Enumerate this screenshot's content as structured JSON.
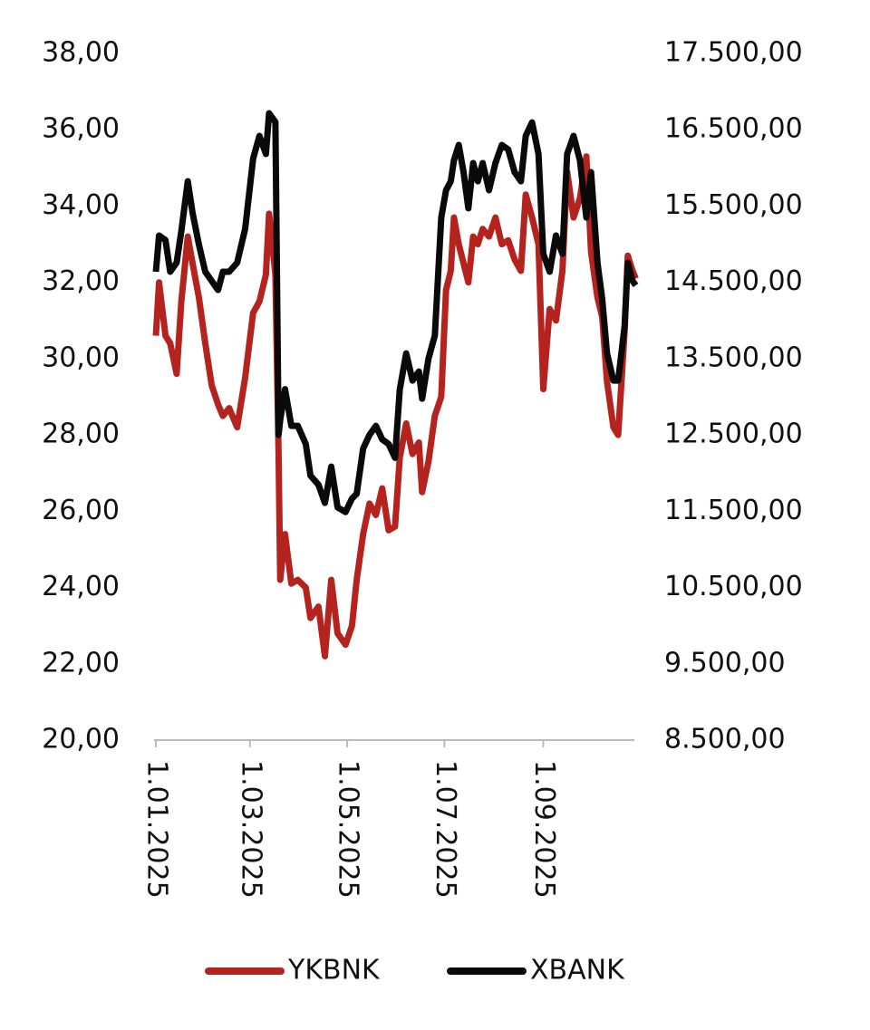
{
  "chart_data": {
    "type": "line",
    "x": [
      "2025-01-01",
      "2025-01-03",
      "2025-01-07",
      "2025-01-10",
      "2025-01-14",
      "2025-01-17",
      "2025-01-21",
      "2025-01-24",
      "2025-01-28",
      "2025-02-01",
      "2025-02-05",
      "2025-02-09",
      "2025-02-12",
      "2025-02-16",
      "2025-02-21",
      "2025-02-26",
      "2025-03-03",
      "2025-03-07",
      "2025-03-11",
      "2025-03-13",
      "2025-03-17",
      "2025-03-19",
      "2025-03-20",
      "2025-03-23",
      "2025-03-27",
      "2025-03-31",
      "2025-04-05",
      "2025-04-08",
      "2025-04-13",
      "2025-04-17",
      "2025-04-21",
      "2025-04-25",
      "2025-04-30",
      "2025-05-04",
      "2025-05-07",
      "2025-05-11",
      "2025-05-15",
      "2025-05-19",
      "2025-05-23",
      "2025-05-27",
      "2025-05-31",
      "2025-06-03",
      "2025-06-07",
      "2025-06-11",
      "2025-06-15",
      "2025-06-17",
      "2025-06-21",
      "2025-06-25",
      "2025-06-29",
      "2025-07-02",
      "2025-07-05",
      "2025-07-07",
      "2025-07-10",
      "2025-07-13",
      "2025-07-16",
      "2025-07-19",
      "2025-07-22",
      "2025-07-25",
      "2025-07-29",
      "2025-08-02",
      "2025-08-06",
      "2025-08-10",
      "2025-08-14",
      "2025-08-18",
      "2025-08-21",
      "2025-08-25",
      "2025-08-29",
      "2025-09-01",
      "2025-09-05",
      "2025-09-09",
      "2025-09-13",
      "2025-09-16",
      "2025-09-20",
      "2025-09-24",
      "2025-09-28",
      "2025-10-01",
      "2025-10-05",
      "2025-10-08",
      "2025-10-11",
      "2025-10-15",
      "2025-10-18",
      "2025-10-22",
      "2025-10-24",
      "2025-10-27",
      "2025-10-29"
    ],
    "series": [
      {
        "name": "YKBNK",
        "color": "#b5231f",
        "axis": "y",
        "values": [
          30.6,
          32.0,
          30.6,
          30.4,
          29.6,
          31.5,
          33.2,
          32.5,
          31.6,
          30.4,
          29.3,
          28.8,
          28.5,
          28.7,
          28.2,
          29.5,
          31.2,
          31.5,
          32.2,
          33.8,
          32.2,
          27.5,
          24.2,
          25.4,
          24.1,
          24.2,
          24.0,
          23.2,
          23.5,
          22.2,
          24.2,
          22.8,
          22.5,
          23.0,
          24.2,
          25.4,
          26.2,
          25.9,
          26.6,
          25.5,
          25.6,
          27.4,
          28.3,
          27.5,
          27.8,
          26.5,
          27.3,
          28.5,
          29.0,
          31.8,
          32.3,
          33.7,
          33.0,
          32.5,
          32.0,
          33.2,
          33.0,
          33.4,
          33.2,
          33.7,
          33.0,
          33.1,
          32.6,
          32.3,
          34.3,
          33.7,
          33.0,
          29.2,
          31.3,
          31.0,
          32.3,
          34.9,
          33.7,
          34.2,
          35.3,
          32.8,
          31.6,
          31.1,
          29.4,
          28.2,
          28.0,
          30.7,
          32.7,
          32.3,
          32.1
        ]
      },
      {
        "name": "XBANK",
        "color": "#0a0a0a",
        "axis": "y2",
        "values": [
          14638,
          15113,
          15054,
          14638,
          14757,
          15172,
          15825,
          15410,
          14994,
          14638,
          14519,
          14400,
          14638,
          14638,
          14757,
          15200,
          16122,
          16419,
          16182,
          16716,
          16600,
          12500,
          12700,
          13100,
          12619,
          12619,
          12381,
          11966,
          11847,
          11609,
          12084,
          11550,
          11490,
          11668,
          11728,
          12322,
          12500,
          12619,
          12441,
          12381,
          12200,
          13094,
          13569,
          13213,
          13331,
          12975,
          13500,
          13800,
          15350,
          15707,
          15825,
          16100,
          16301,
          15944,
          15470,
          16063,
          15825,
          16063,
          15707,
          16063,
          16301,
          16241,
          15944,
          15825,
          16419,
          16597,
          16182,
          14875,
          14638,
          15113,
          14875,
          16182,
          16419,
          16100,
          15350,
          15944,
          14757,
          14281,
          13569,
          13213,
          13213,
          13925,
          14757,
          14519,
          14460
        ]
      }
    ],
    "xlim": [
      "2025-01-01",
      "2025-10-31"
    ],
    "xticks": [
      {
        "value": "2025-01-01",
        "label": "1.01.2025"
      },
      {
        "value": "2025-03-01",
        "label": "1.03.2025"
      },
      {
        "value": "2025-05-01",
        "label": "1.05.2025"
      },
      {
        "value": "2025-07-01",
        "label": "1.07.2025"
      },
      {
        "value": "2025-09-01",
        "label": "1.09.2025"
      }
    ],
    "ylim": [
      20,
      38
    ],
    "yticks": [
      {
        "value": 20,
        "label": "20,00"
      },
      {
        "value": 22,
        "label": "22,00"
      },
      {
        "value": 24,
        "label": "24,00"
      },
      {
        "value": 26,
        "label": "26,00"
      },
      {
        "value": 28,
        "label": "28,00"
      },
      {
        "value": 30,
        "label": "30,00"
      },
      {
        "value": 32,
        "label": "32,00"
      },
      {
        "value": 34,
        "label": "34,00"
      },
      {
        "value": 36,
        "label": "36,00"
      },
      {
        "value": 38,
        "label": "38,00"
      }
    ],
    "y2lim": [
      8500,
      17500
    ],
    "y2ticks": [
      {
        "value": 8500,
        "label": "8.500,00"
      },
      {
        "value": 9500,
        "label": "9.500,00"
      },
      {
        "value": 10500,
        "label": "10.500,00"
      },
      {
        "value": 11500,
        "label": "11.500,00"
      },
      {
        "value": 12500,
        "label": "12.500,00"
      },
      {
        "value": 13500,
        "label": "13.500,00"
      },
      {
        "value": 14500,
        "label": "14.500,00"
      },
      {
        "value": 15500,
        "label": "15.500,00"
      },
      {
        "value": 16500,
        "label": "16.500,00"
      },
      {
        "value": 17500,
        "label": "17.500,00"
      }
    ],
    "grid": false,
    "legend": "bottom"
  }
}
